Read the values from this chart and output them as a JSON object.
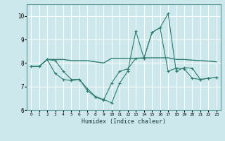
{
  "title": "",
  "xlabel": "Humidex (Indice chaleur)",
  "ylabel": "",
  "bg_color": "#cce8ec",
  "grid_color": "#ffffff",
  "line_color": "#2e7d6e",
  "xlim": [
    -0.5,
    23.5
  ],
  "ylim": [
    6,
    10.5
  ],
  "yticks": [
    6,
    7,
    8,
    9,
    10
  ],
  "xticks": [
    0,
    1,
    2,
    3,
    4,
    5,
    6,
    7,
    8,
    9,
    10,
    11,
    12,
    13,
    14,
    15,
    16,
    17,
    18,
    19,
    20,
    21,
    22,
    23
  ],
  "line1_x": [
    0,
    1,
    2,
    3,
    4,
    5,
    6,
    7,
    8,
    9,
    10,
    11,
    12,
    13,
    14,
    15,
    16,
    17,
    18,
    19,
    20,
    21,
    22,
    23
  ],
  "line1_y": [
    7.85,
    7.85,
    8.15,
    8.15,
    8.15,
    8.1,
    8.1,
    8.1,
    8.05,
    8.0,
    8.2,
    8.2,
    8.2,
    8.2,
    8.22,
    8.22,
    8.22,
    8.22,
    8.15,
    8.15,
    8.12,
    8.1,
    8.08,
    8.05
  ],
  "line2_x": [
    0,
    1,
    2,
    3,
    4,
    5,
    6,
    7,
    8,
    9,
    10,
    11,
    12,
    13,
    14,
    15,
    16,
    17,
    18,
    19,
    20,
    21,
    22,
    23
  ],
  "line2_y": [
    7.85,
    7.85,
    8.15,
    8.1,
    7.65,
    7.3,
    7.3,
    6.9,
    6.57,
    6.45,
    6.3,
    7.15,
    7.65,
    9.35,
    8.2,
    9.3,
    9.5,
    10.1,
    7.65,
    7.8,
    7.78,
    7.3,
    7.35,
    7.38
  ],
  "line3_x": [
    0,
    1,
    2,
    3,
    4,
    5,
    6,
    7,
    8,
    9,
    10,
    11,
    12,
    13,
    14,
    15,
    16,
    17,
    18,
    19,
    20,
    21,
    22,
    23
  ],
  "line3_y": [
    7.85,
    7.85,
    8.15,
    7.55,
    7.3,
    7.25,
    7.3,
    6.82,
    6.55,
    6.42,
    7.15,
    7.65,
    7.75,
    8.2,
    8.2,
    9.3,
    9.5,
    7.65,
    7.78,
    7.75,
    7.35,
    7.3,
    7.35,
    7.38
  ]
}
